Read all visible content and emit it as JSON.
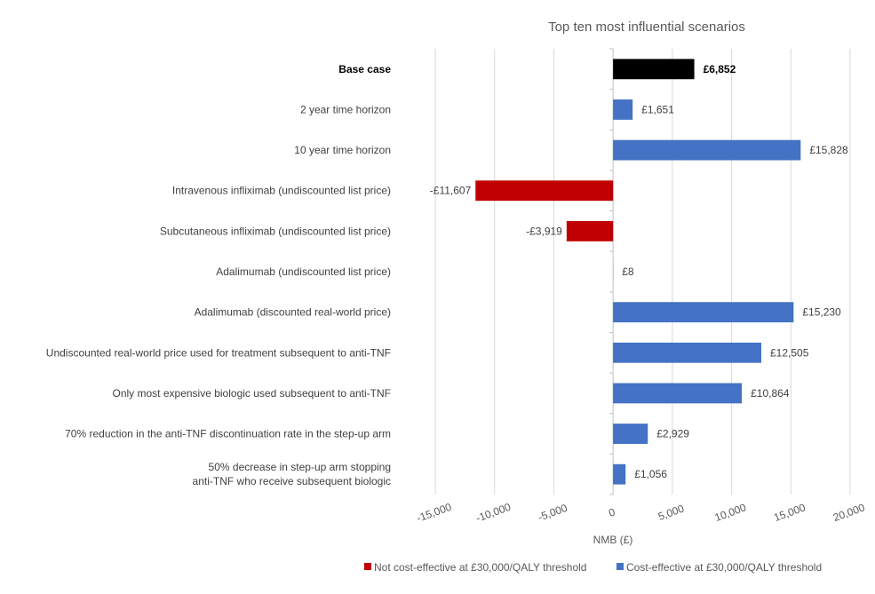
{
  "chart_data": {
    "type": "bar",
    "orientation": "horizontal",
    "title": "Top ten most influential scenarios",
    "xlabel": "NMB (£)",
    "ylabel": "",
    "xlim": [
      -15000,
      20000
    ],
    "xticks": [
      -15000,
      -10000,
      -5000,
      0,
      5000,
      10000,
      15000,
      20000
    ],
    "xtick_labels": [
      "-15,000",
      "-10,000",
      "-5,000",
      "0",
      "5,000",
      "10,000",
      "15,000",
      "20,000"
    ],
    "grid": true,
    "legend_position": "bottom",
    "categories": [
      "Base case",
      "2 year time horizon",
      "10 year time horizon",
      "Intravenous infliximab (undiscounted list price)",
      "Subcutaneous infliximab (undiscounted list price)",
      "Adalimumab (undiscounted list price)",
      "Adalimumab (discounted real-world price)",
      "Undiscounted real-world price used for treatment subsequent to anti-TNF",
      "Only most expensive biologic used subsequent to anti-TNF",
      "70% reduction in the anti-TNF discontinuation rate in the step-up arm",
      "50% decrease in step-up arm stopping\nanti-TNF who receive subsequent biologic"
    ],
    "values": [
      6852,
      1651,
      15828,
      -11607,
      -3919,
      8,
      15230,
      12505,
      10864,
      2929,
      1056
    ],
    "data_labels": [
      "£6,852",
      "£1,651",
      "£15,828",
      "-£11,607",
      "-£3,919",
      "£8",
      "£15,230",
      "£12,505",
      "£10,864",
      "£2,929",
      "£1,056"
    ],
    "bar_groups": [
      "base",
      "cost-effective",
      "cost-effective",
      "not-cost-effective",
      "not-cost-effective",
      "cost-effective",
      "cost-effective",
      "cost-effective",
      "cost-effective",
      "cost-effective",
      "cost-effective"
    ],
    "colors": {
      "base": "#000000",
      "cost-effective": "#4472C4",
      "not-cost-effective": "#C00000"
    },
    "legend": [
      {
        "name": "Not cost-effective at £30,000/QALY threshold",
        "color": "#C00000"
      },
      {
        "name": "Cost-effective at £30,000/QALY threshold",
        "color": "#4472C4"
      }
    ]
  }
}
